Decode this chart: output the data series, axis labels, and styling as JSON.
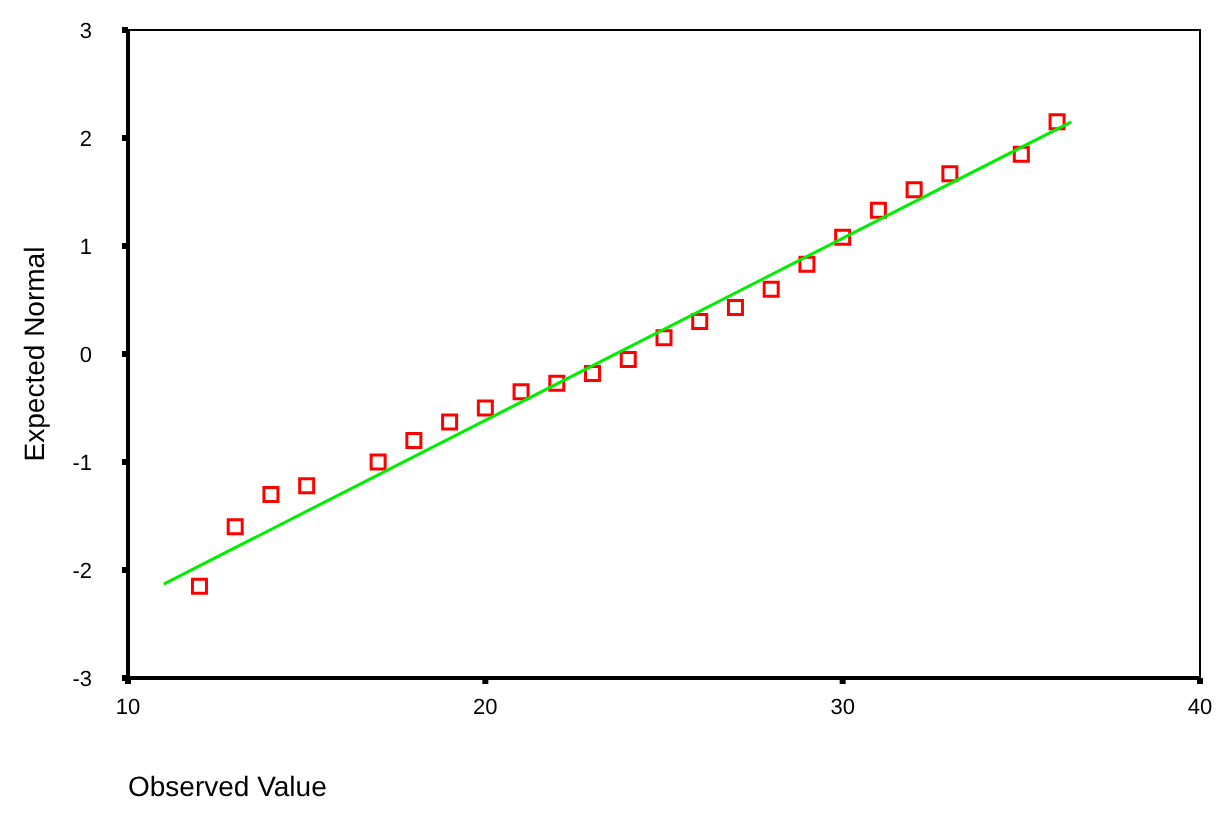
{
  "chart_data": {
    "type": "scatter",
    "xlabel": "Observed Value",
    "ylabel": "Expected Normal",
    "xlim": [
      10,
      40
    ],
    "ylim": [
      -3,
      3
    ],
    "xticks": [
      10,
      20,
      30,
      40
    ],
    "yticks": [
      -3,
      -2,
      -1,
      0,
      1,
      2,
      3
    ],
    "grid": false,
    "marker": "square",
    "series": [
      {
        "color": "#ff0000",
        "x": [
          12,
          13,
          14,
          15,
          17,
          18,
          19,
          20,
          21,
          22,
          23,
          24,
          25,
          26,
          27,
          28,
          29,
          30,
          31,
          32,
          33,
          35,
          36
        ],
        "values": [
          -2.15,
          -1.6,
          -1.3,
          -1.22,
          -1.0,
          -0.8,
          -0.63,
          -0.5,
          -0.35,
          -0.27,
          -0.18,
          -0.05,
          0.15,
          0.3,
          0.43,
          0.6,
          0.83,
          1.08,
          1.33,
          1.52,
          1.67,
          1.85,
          2.15
        ]
      },
      {
        "type": "line",
        "marker": "none",
        "color": "#00ee00",
        "x": [
          11,
          36.4
        ],
        "values": [
          -2.13,
          2.15
        ]
      }
    ]
  }
}
